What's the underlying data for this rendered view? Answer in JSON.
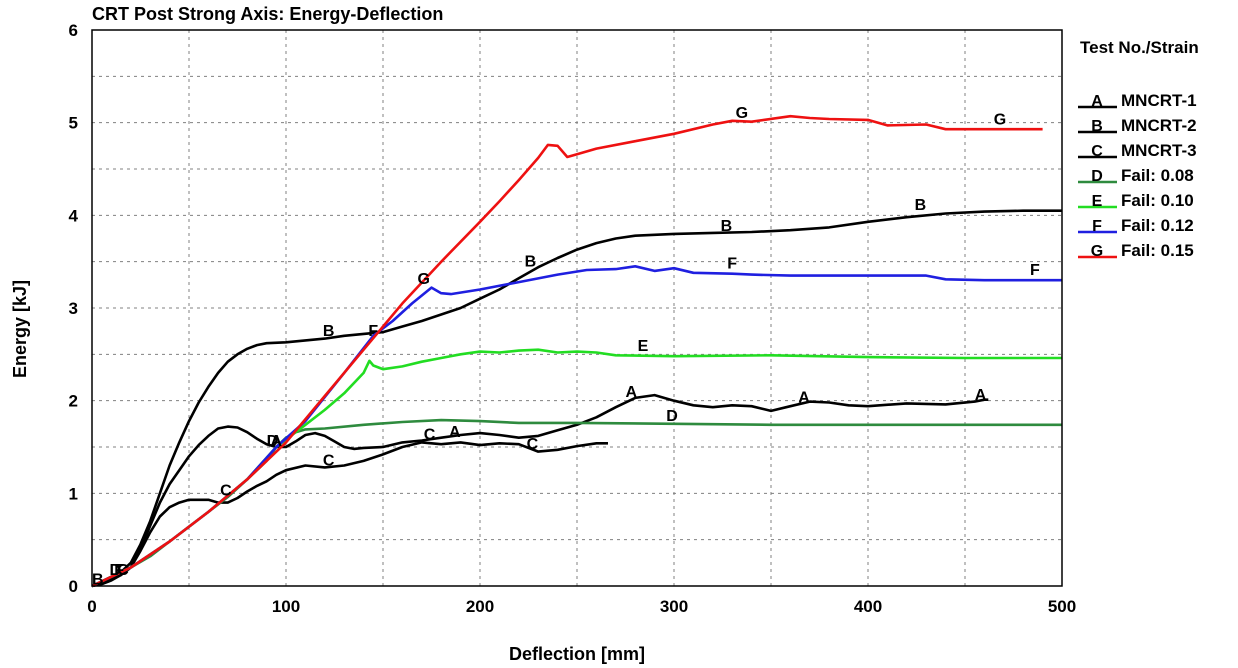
{
  "chart_data": {
    "type": "line",
    "title": "CRT Post Strong Axis: Energy-Deflection",
    "xlabel": "Deflection [mm]",
    "ylabel": "Energy [kJ]",
    "xlim": [
      0,
      500
    ],
    "ylim": [
      0,
      6
    ],
    "xticks": [
      "0",
      "100",
      "200",
      "300",
      "400",
      "500"
    ],
    "yticks": [
      "0",
      "1",
      "2",
      "3",
      "4",
      "5",
      "6"
    ],
    "grid": true,
    "legend": {
      "title": "Test No./Strain",
      "position": "right"
    },
    "series": [
      {
        "name": "MNCRT-1",
        "marker": "A",
        "color": "#000000",
        "points": [
          [
            0,
            0
          ],
          [
            5,
            0.02
          ],
          [
            10,
            0.06
          ],
          [
            15,
            0.12
          ],
          [
            20,
            0.2
          ],
          [
            25,
            0.4
          ],
          [
            30,
            0.65
          ],
          [
            35,
            0.9
          ],
          [
            40,
            1.1
          ],
          [
            45,
            1.25
          ],
          [
            50,
            1.4
          ],
          [
            55,
            1.52
          ],
          [
            60,
            1.62
          ],
          [
            65,
            1.7
          ],
          [
            70,
            1.72
          ],
          [
            75,
            1.71
          ],
          [
            80,
            1.66
          ],
          [
            85,
            1.59
          ],
          [
            90,
            1.53
          ],
          [
            95,
            1.5
          ],
          [
            100,
            1.5
          ],
          [
            105,
            1.56
          ],
          [
            110,
            1.63
          ],
          [
            115,
            1.65
          ],
          [
            120,
            1.62
          ],
          [
            125,
            1.56
          ],
          [
            130,
            1.5
          ],
          [
            135,
            1.48
          ],
          [
            140,
            1.49
          ],
          [
            150,
            1.5
          ],
          [
            160,
            1.55
          ],
          [
            170,
            1.57
          ],
          [
            180,
            1.6
          ],
          [
            190,
            1.63
          ],
          [
            200,
            1.65
          ],
          [
            210,
            1.63
          ],
          [
            220,
            1.6
          ],
          [
            230,
            1.62
          ],
          [
            240,
            1.68
          ],
          [
            250,
            1.74
          ],
          [
            260,
            1.82
          ],
          [
            270,
            1.93
          ],
          [
            280,
            2.03
          ],
          [
            290,
            2.06
          ],
          [
            300,
            2.0
          ],
          [
            310,
            1.95
          ],
          [
            320,
            1.93
          ],
          [
            330,
            1.95
          ],
          [
            340,
            1.94
          ],
          [
            350,
            1.89
          ],
          [
            360,
            1.94
          ],
          [
            370,
            1.99
          ],
          [
            380,
            1.98
          ],
          [
            390,
            1.95
          ],
          [
            400,
            1.94
          ],
          [
            420,
            1.97
          ],
          [
            440,
            1.96
          ],
          [
            455,
            1.99
          ],
          [
            460,
            2.01
          ],
          [
            462,
            2.01
          ]
        ]
      },
      {
        "name": "MNCRT-2",
        "marker": "B",
        "color": "#000000",
        "points": [
          [
            0,
            0
          ],
          [
            5,
            0.03
          ],
          [
            10,
            0.08
          ],
          [
            15,
            0.15
          ],
          [
            20,
            0.25
          ],
          [
            25,
            0.45
          ],
          [
            30,
            0.7
          ],
          [
            35,
            1.0
          ],
          [
            40,
            1.3
          ],
          [
            45,
            1.55
          ],
          [
            50,
            1.78
          ],
          [
            55,
            1.98
          ],
          [
            60,
            2.15
          ],
          [
            65,
            2.3
          ],
          [
            70,
            2.42
          ],
          [
            75,
            2.5
          ],
          [
            80,
            2.56
          ],
          [
            85,
            2.6
          ],
          [
            90,
            2.62
          ],
          [
            100,
            2.63
          ],
          [
            110,
            2.65
          ],
          [
            120,
            2.67
          ],
          [
            130,
            2.7
          ],
          [
            140,
            2.72
          ],
          [
            150,
            2.74
          ],
          [
            160,
            2.8
          ],
          [
            170,
            2.86
          ],
          [
            180,
            2.93
          ],
          [
            190,
            3.0
          ],
          [
            200,
            3.1
          ],
          [
            210,
            3.2
          ],
          [
            220,
            3.32
          ],
          [
            230,
            3.44
          ],
          [
            240,
            3.54
          ],
          [
            250,
            3.63
          ],
          [
            260,
            3.7
          ],
          [
            270,
            3.75
          ],
          [
            280,
            3.78
          ],
          [
            290,
            3.79
          ],
          [
            300,
            3.8
          ],
          [
            320,
            3.81
          ],
          [
            340,
            3.82
          ],
          [
            360,
            3.84
          ],
          [
            380,
            3.87
          ],
          [
            400,
            3.93
          ],
          [
            420,
            3.98
          ],
          [
            440,
            4.02
          ],
          [
            460,
            4.04
          ],
          [
            480,
            4.05
          ],
          [
            500,
            4.05
          ]
        ]
      },
      {
        "name": "MNCRT-3",
        "marker": "C",
        "color": "#000000",
        "points": [
          [
            0,
            0
          ],
          [
            5,
            0.03
          ],
          [
            10,
            0.07
          ],
          [
            15,
            0.12
          ],
          [
            20,
            0.2
          ],
          [
            25,
            0.38
          ],
          [
            30,
            0.58
          ],
          [
            35,
            0.75
          ],
          [
            40,
            0.85
          ],
          [
            45,
            0.9
          ],
          [
            50,
            0.93
          ],
          [
            55,
            0.93
          ],
          [
            60,
            0.93
          ],
          [
            65,
            0.9
          ],
          [
            70,
            0.9
          ],
          [
            75,
            0.95
          ],
          [
            80,
            1.02
          ],
          [
            85,
            1.08
          ],
          [
            90,
            1.13
          ],
          [
            95,
            1.2
          ],
          [
            100,
            1.25
          ],
          [
            110,
            1.3
          ],
          [
            120,
            1.28
          ],
          [
            130,
            1.3
          ],
          [
            140,
            1.35
          ],
          [
            150,
            1.42
          ],
          [
            160,
            1.5
          ],
          [
            170,
            1.55
          ],
          [
            180,
            1.53
          ],
          [
            190,
            1.55
          ],
          [
            200,
            1.52
          ],
          [
            210,
            1.54
          ],
          [
            220,
            1.53
          ],
          [
            230,
            1.45
          ],
          [
            240,
            1.47
          ],
          [
            250,
            1.51
          ],
          [
            260,
            1.54
          ],
          [
            266,
            1.54
          ]
        ]
      },
      {
        "name": "Fail: 0.08",
        "marker": "D",
        "color": "#2e8b3e",
        "points": [
          [
            0,
            0
          ],
          [
            10,
            0.1
          ],
          [
            20,
            0.2
          ],
          [
            30,
            0.32
          ],
          [
            40,
            0.48
          ],
          [
            50,
            0.64
          ],
          [
            60,
            0.8
          ],
          [
            70,
            0.96
          ],
          [
            80,
            1.15
          ],
          [
            90,
            1.35
          ],
          [
            95,
            1.5
          ],
          [
            100,
            1.6
          ],
          [
            105,
            1.66
          ],
          [
            110,
            1.69
          ],
          [
            120,
            1.7
          ],
          [
            140,
            1.74
          ],
          [
            160,
            1.77
          ],
          [
            180,
            1.79
          ],
          [
            200,
            1.78
          ],
          [
            220,
            1.76
          ],
          [
            250,
            1.76
          ],
          [
            300,
            1.75
          ],
          [
            350,
            1.74
          ],
          [
            400,
            1.74
          ],
          [
            450,
            1.74
          ],
          [
            500,
            1.74
          ]
        ]
      },
      {
        "name": "Fail: 0.10",
        "marker": "E",
        "color": "#22dd22",
        "points": [
          [
            0,
            0
          ],
          [
            20,
            0.2
          ],
          [
            40,
            0.48
          ],
          [
            60,
            0.8
          ],
          [
            80,
            1.15
          ],
          [
            95,
            1.5
          ],
          [
            100,
            1.58
          ],
          [
            110,
            1.74
          ],
          [
            120,
            1.9
          ],
          [
            130,
            2.08
          ],
          [
            140,
            2.3
          ],
          [
            143,
            2.43
          ],
          [
            145,
            2.38
          ],
          [
            150,
            2.34
          ],
          [
            160,
            2.37
          ],
          [
            170,
            2.42
          ],
          [
            180,
            2.46
          ],
          [
            190,
            2.5
          ],
          [
            200,
            2.53
          ],
          [
            210,
            2.52
          ],
          [
            220,
            2.54
          ],
          [
            230,
            2.55
          ],
          [
            240,
            2.52
          ],
          [
            250,
            2.53
          ],
          [
            260,
            2.52
          ],
          [
            270,
            2.49
          ],
          [
            300,
            2.48
          ],
          [
            350,
            2.49
          ],
          [
            400,
            2.47
          ],
          [
            450,
            2.46
          ],
          [
            500,
            2.46
          ]
        ]
      },
      {
        "name": "Fail: 0.12",
        "marker": "F",
        "color": "#1f1fe0",
        "points": [
          [
            0,
            0
          ],
          [
            20,
            0.2
          ],
          [
            40,
            0.48
          ],
          [
            60,
            0.8
          ],
          [
            80,
            1.15
          ],
          [
            95,
            1.5
          ],
          [
            110,
            1.78
          ],
          [
            130,
            2.3
          ],
          [
            145,
            2.7
          ],
          [
            155,
            2.86
          ],
          [
            165,
            3.05
          ],
          [
            175,
            3.22
          ],
          [
            180,
            3.16
          ],
          [
            185,
            3.15
          ],
          [
            200,
            3.2
          ],
          [
            220,
            3.28
          ],
          [
            240,
            3.36
          ],
          [
            255,
            3.41
          ],
          [
            270,
            3.42
          ],
          [
            280,
            3.45
          ],
          [
            290,
            3.4
          ],
          [
            300,
            3.43
          ],
          [
            310,
            3.38
          ],
          [
            330,
            3.37
          ],
          [
            340,
            3.36
          ],
          [
            360,
            3.35
          ],
          [
            400,
            3.35
          ],
          [
            430,
            3.35
          ],
          [
            440,
            3.31
          ],
          [
            460,
            3.3
          ],
          [
            500,
            3.3
          ]
        ]
      },
      {
        "name": "Fail: 0.15",
        "marker": "G",
        "color": "#ee1111",
        "points": [
          [
            0,
            0
          ],
          [
            20,
            0.2
          ],
          [
            40,
            0.48
          ],
          [
            60,
            0.8
          ],
          [
            80,
            1.15
          ],
          [
            100,
            1.55
          ],
          [
            120,
            2.05
          ],
          [
            140,
            2.55
          ],
          [
            160,
            3.05
          ],
          [
            180,
            3.5
          ],
          [
            200,
            3.93
          ],
          [
            210,
            4.15
          ],
          [
            220,
            4.38
          ],
          [
            230,
            4.62
          ],
          [
            235,
            4.76
          ],
          [
            240,
            4.75
          ],
          [
            245,
            4.63
          ],
          [
            250,
            4.66
          ],
          [
            260,
            4.72
          ],
          [
            280,
            4.8
          ],
          [
            300,
            4.88
          ],
          [
            320,
            4.98
          ],
          [
            330,
            5.02
          ],
          [
            340,
            5.01
          ],
          [
            360,
            5.07
          ],
          [
            370,
            5.05
          ],
          [
            380,
            5.04
          ],
          [
            400,
            5.03
          ],
          [
            410,
            4.97
          ],
          [
            430,
            4.98
          ],
          [
            440,
            4.93
          ],
          [
            460,
            4.93
          ],
          [
            480,
            4.93
          ],
          [
            490,
            4.93
          ]
        ]
      }
    ],
    "markers": [
      {
        "label": "A",
        "x": 95,
        "y": 1.53
      },
      {
        "label": "A",
        "x": 187,
        "y": 1.63
      },
      {
        "label": "A",
        "x": 278,
        "y": 2.06
      },
      {
        "label": "A",
        "x": 367,
        "y": 2.0
      },
      {
        "label": "A",
        "x": 458,
        "y": 2.03
      },
      {
        "label": "B",
        "x": 3,
        "y": 0.04
      },
      {
        "label": "B",
        "x": 122,
        "y": 2.72
      },
      {
        "label": "B",
        "x": 226,
        "y": 3.47
      },
      {
        "label": "B",
        "x": 327,
        "y": 3.85
      },
      {
        "label": "B",
        "x": 427,
        "y": 4.08
      },
      {
        "label": "C",
        "x": 16,
        "y": 0.14
      },
      {
        "label": "C",
        "x": 69,
        "y": 1.0
      },
      {
        "label": "C",
        "x": 122,
        "y": 1.32
      },
      {
        "label": "C",
        "x": 174,
        "y": 1.6
      },
      {
        "label": "C",
        "x": 227,
        "y": 1.5
      },
      {
        "label": "D",
        "x": 12,
        "y": 0.14
      },
      {
        "label": "D",
        "x": 93,
        "y": 1.53
      },
      {
        "label": "D",
        "x": 299,
        "y": 1.8
      },
      {
        "label": "E",
        "x": 284,
        "y": 2.56
      },
      {
        "label": "F",
        "x": 14,
        "y": 0.14
      },
      {
        "label": "F",
        "x": 145,
        "y": 2.72
      },
      {
        "label": "F",
        "x": 330,
        "y": 3.45
      },
      {
        "label": "F",
        "x": 486,
        "y": 3.38
      },
      {
        "label": "G",
        "x": 171,
        "y": 3.28
      },
      {
        "label": "G",
        "x": 335,
        "y": 5.07
      },
      {
        "label": "G",
        "x": 468,
        "y": 5.0
      }
    ]
  }
}
